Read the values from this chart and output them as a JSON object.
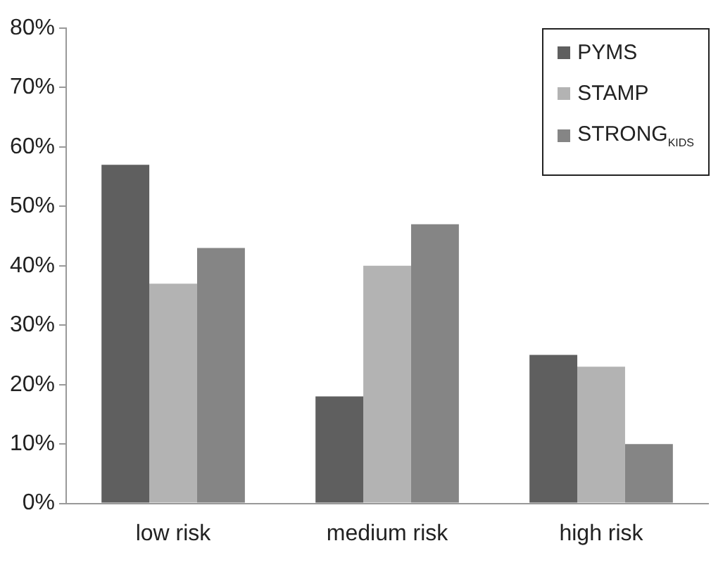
{
  "chart_data": {
    "type": "bar",
    "categories": [
      "low risk",
      "medium risk",
      "high risk"
    ],
    "series": [
      {
        "name": "PYMS",
        "color": "#5f5f5f",
        "values": [
          57,
          18,
          25
        ]
      },
      {
        "name": "STAMP",
        "color": "#b3b3b3",
        "values": [
          37,
          40,
          23
        ]
      },
      {
        "name": "STRONG$_{KIDS}$",
        "color": "#858585",
        "values": [
          43,
          47,
          10
        ]
      }
    ],
    "ylim": [
      0,
      80
    ],
    "yticks": [
      {
        "value": 0,
        "label": "0%"
      },
      {
        "value": 10,
        "label": "10%"
      },
      {
        "value": 20,
        "label": "20%"
      },
      {
        "value": 30,
        "label": "30%"
      },
      {
        "value": 40,
        "label": "40%"
      },
      {
        "value": 50,
        "label": "50%"
      },
      {
        "value": 60,
        "label": "60%"
      },
      {
        "value": 70,
        "label": "70%"
      },
      {
        "value": 80,
        "label": "80%"
      }
    ],
    "grid": false,
    "legend": "top right"
  }
}
